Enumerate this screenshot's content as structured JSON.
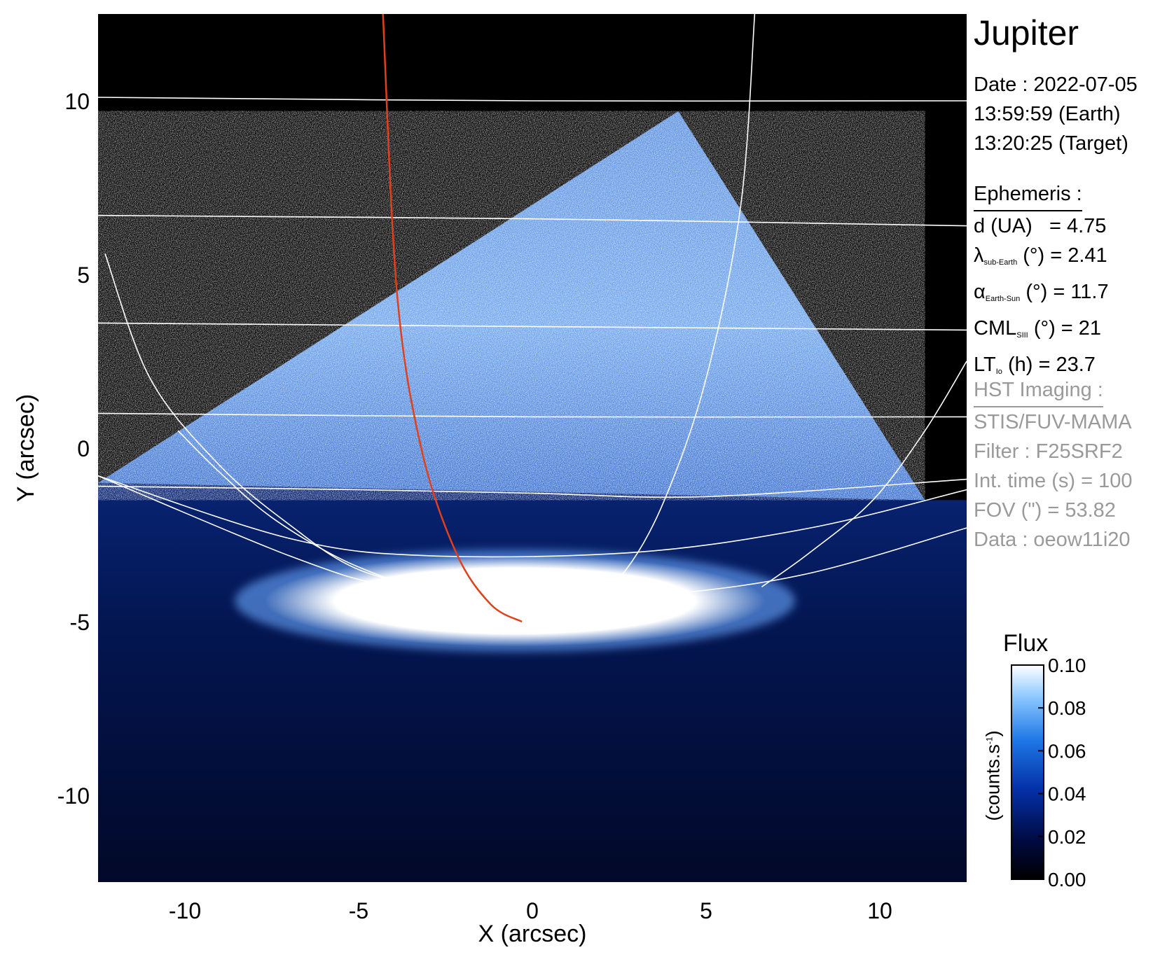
{
  "figure": {
    "target": "Jupiter",
    "date_lines": [
      "Date : 2022-07-05",
      "13:59:59 (Earth)",
      "13:20:25 (Target)"
    ],
    "ephemeris": {
      "heading": "Ephemeris :",
      "d_label": "d (UA)",
      "d_value": "= 4.75",
      "lat_sym": "λ",
      "lat_sub": "sub-Earth",
      "lat_rest": "(°) = 2.41",
      "phase_sym": "α",
      "phase_sub": "Earth-Sun",
      "phase_rest": "(°) = 11.7",
      "cml_sym": "CML",
      "cml_sub": "SIII",
      "cml_rest": "(°) = 21",
      "lt_sym": "LT",
      "lt_sub": "Io",
      "lt_rest": "(h) = 23.7"
    },
    "hst": {
      "heading": "HST Imaging :",
      "lines": [
        "STIS/FUV-MAMA",
        "Filter : F25SRF2",
        "Int. time (s) = 100",
        "FOV (\") = 53.82",
        "Data : oeow11i20"
      ]
    },
    "colors": {
      "gray_text": "#9a9a9a",
      "footprint": "#e0401a",
      "grid": "#ffffff",
      "sky": "#000000"
    }
  },
  "chart_data": {
    "type": "heatmap",
    "xlabel": "X (arcsec)",
    "ylabel": "Y (arcsec)",
    "xlim": [
      -12.5,
      12.5
    ],
    "ylim": [
      -12.5,
      12.5
    ],
    "xticks": [
      -10,
      -5,
      0,
      5,
      10
    ],
    "yticks": [
      -10,
      -5,
      0,
      5,
      10
    ],
    "x_ticklabels": [
      "-10",
      "-5",
      "0",
      "5",
      "10"
    ],
    "y_ticklabels": [
      "-10",
      "-5",
      "0",
      "5",
      "10"
    ],
    "colorbar": {
      "title": "Flux",
      "unit": "(counts.s-1)",
      "range": [
        0.0,
        0.1
      ],
      "ticklabels": [
        "0.10",
        "0.08",
        "0.06",
        "0.04",
        "0.02",
        "0.00"
      ]
    },
    "image_regions": [
      {
        "name": "detector-triangle",
        "vertices": [
          [
            -12.5,
            -1.0
          ],
          [
            4.2,
            9.7
          ],
          [
            11.3,
            -1.5
          ]
        ]
      },
      {
        "name": "auroral-oval",
        "center": [
          -0.5,
          -4.4
        ],
        "semi_axes": [
          7.2,
          1.05
        ]
      }
    ],
    "io_footprint": [
      [
        -4.3,
        12.5
      ],
      [
        -3.9,
        4.5
      ],
      [
        -3.2,
        0.0
      ],
      [
        -2.2,
        -3.0
      ],
      [
        -1.2,
        -4.5
      ],
      [
        -0.3,
        -5.0
      ]
    ],
    "latitude_lines": [
      [
        [
          -12.5,
          10.1
        ],
        [
          0,
          10.0
        ],
        [
          12.5,
          10.0
        ]
      ],
      [
        [
          -12.5,
          6.7
        ],
        [
          0,
          6.6
        ],
        [
          12.5,
          6.4
        ]
      ],
      [
        [
          -12.5,
          3.6
        ],
        [
          0,
          3.5
        ],
        [
          12.5,
          3.4
        ]
      ],
      [
        [
          -12.5,
          1.0
        ],
        [
          0,
          0.9
        ],
        [
          12.5,
          0.9
        ]
      ],
      [
        [
          -12.5,
          -1.1
        ],
        [
          -5,
          -1.2
        ],
        [
          0,
          -1.3
        ],
        [
          5,
          -1.4
        ],
        [
          12.5,
          -0.9
        ]
      ],
      [
        [
          -12.5,
          -0.8
        ],
        [
          -7,
          -2.6
        ],
        [
          -3,
          -3.1
        ],
        [
          3,
          -3.0
        ],
        [
          8,
          -2.3
        ],
        [
          12.5,
          -1.2
        ]
      ],
      [
        [
          -12.5,
          -0.8
        ],
        [
          -7,
          -3.1
        ],
        [
          -4,
          -4.0
        ],
        [
          0,
          -4.4
        ],
        [
          4,
          -4.2
        ],
        [
          8,
          -3.6
        ],
        [
          12.5,
          -2.3
        ]
      ]
    ],
    "longitude_lines": [
      [
        [
          -12.3,
          5.6
        ],
        [
          -11,
          2.0
        ],
        [
          -9,
          -0.5
        ],
        [
          -7,
          -2.2
        ],
        [
          -5,
          -3.5
        ],
        [
          -2.2,
          -4.2
        ]
      ],
      [
        [
          -10.2,
          0.5
        ],
        [
          -9,
          -0.7
        ],
        [
          -7.5,
          -2.0
        ],
        [
          -5.5,
          -3.2
        ],
        [
          -3.5,
          -4.0
        ]
      ],
      [
        [
          6.4,
          12.5
        ],
        [
          6.0,
          7.0
        ],
        [
          5.0,
          2.0
        ],
        [
          3.8,
          -1.5
        ],
        [
          2.7,
          -3.5
        ],
        [
          1.7,
          -4.3
        ]
      ],
      [
        [
          12.5,
          2.5
        ],
        [
          11.3,
          0.5
        ],
        [
          9.8,
          -1.5
        ],
        [
          8.0,
          -3.0
        ],
        [
          6.6,
          -4.0
        ]
      ]
    ]
  }
}
